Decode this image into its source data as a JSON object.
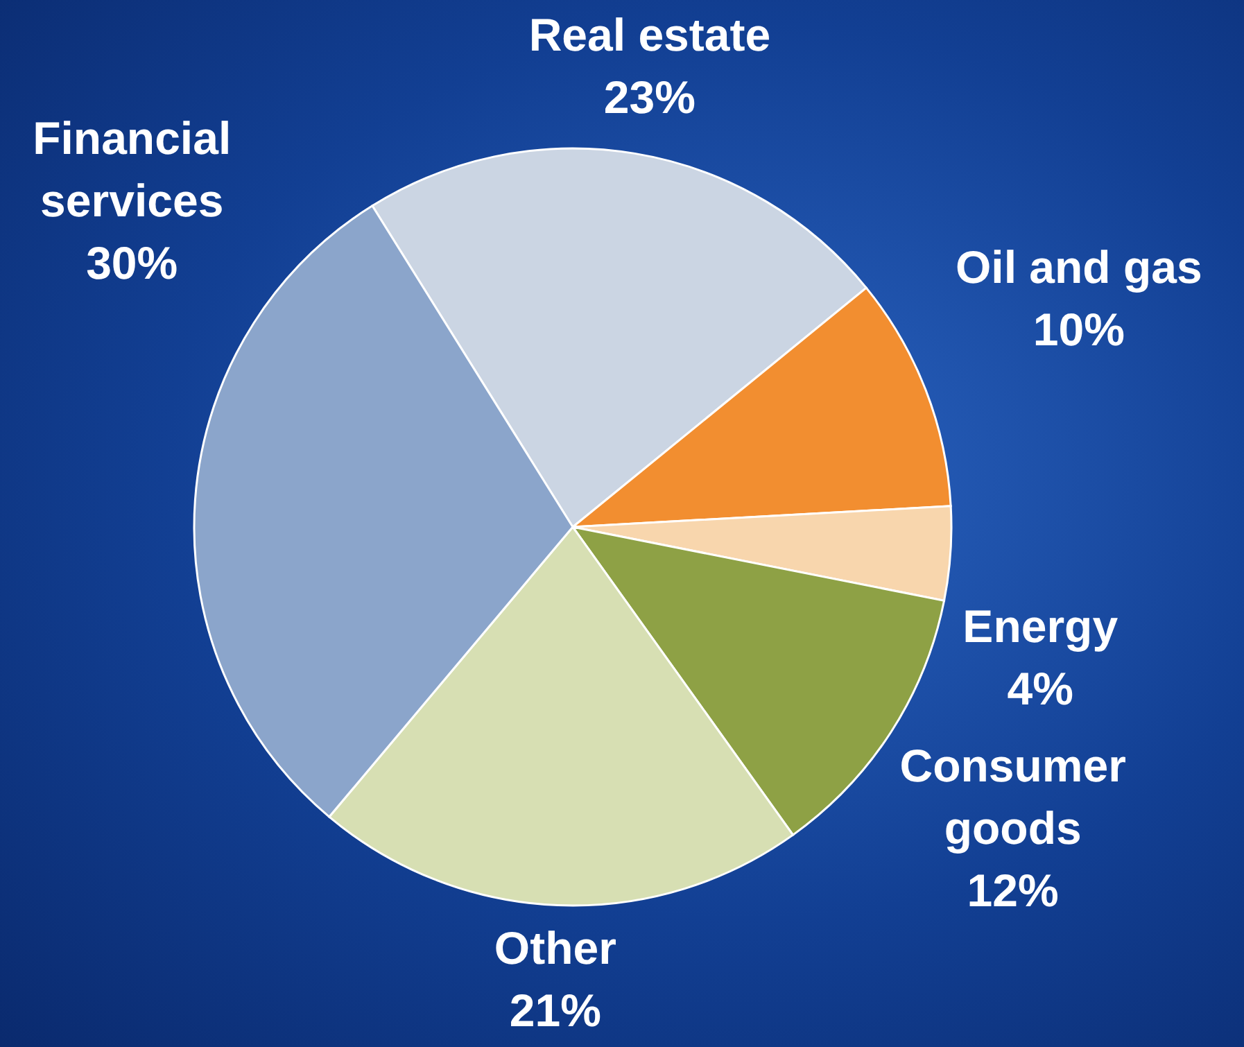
{
  "chart_data": {
    "type": "pie",
    "categories": [
      "Real estate",
      "Oil and gas",
      "Energy",
      "Consumer goods",
      "Other",
      "Financial services"
    ],
    "values": [
      23,
      10,
      4,
      12,
      21,
      30
    ],
    "value_labels": [
      "23%",
      "10%",
      "4%",
      "12%",
      "21%",
      "30%"
    ],
    "colors": [
      "#cbd5e3",
      "#f28e30",
      "#f8d6ad",
      "#8ea145",
      "#d7dfb3",
      "#8ba5cb"
    ]
  }
}
